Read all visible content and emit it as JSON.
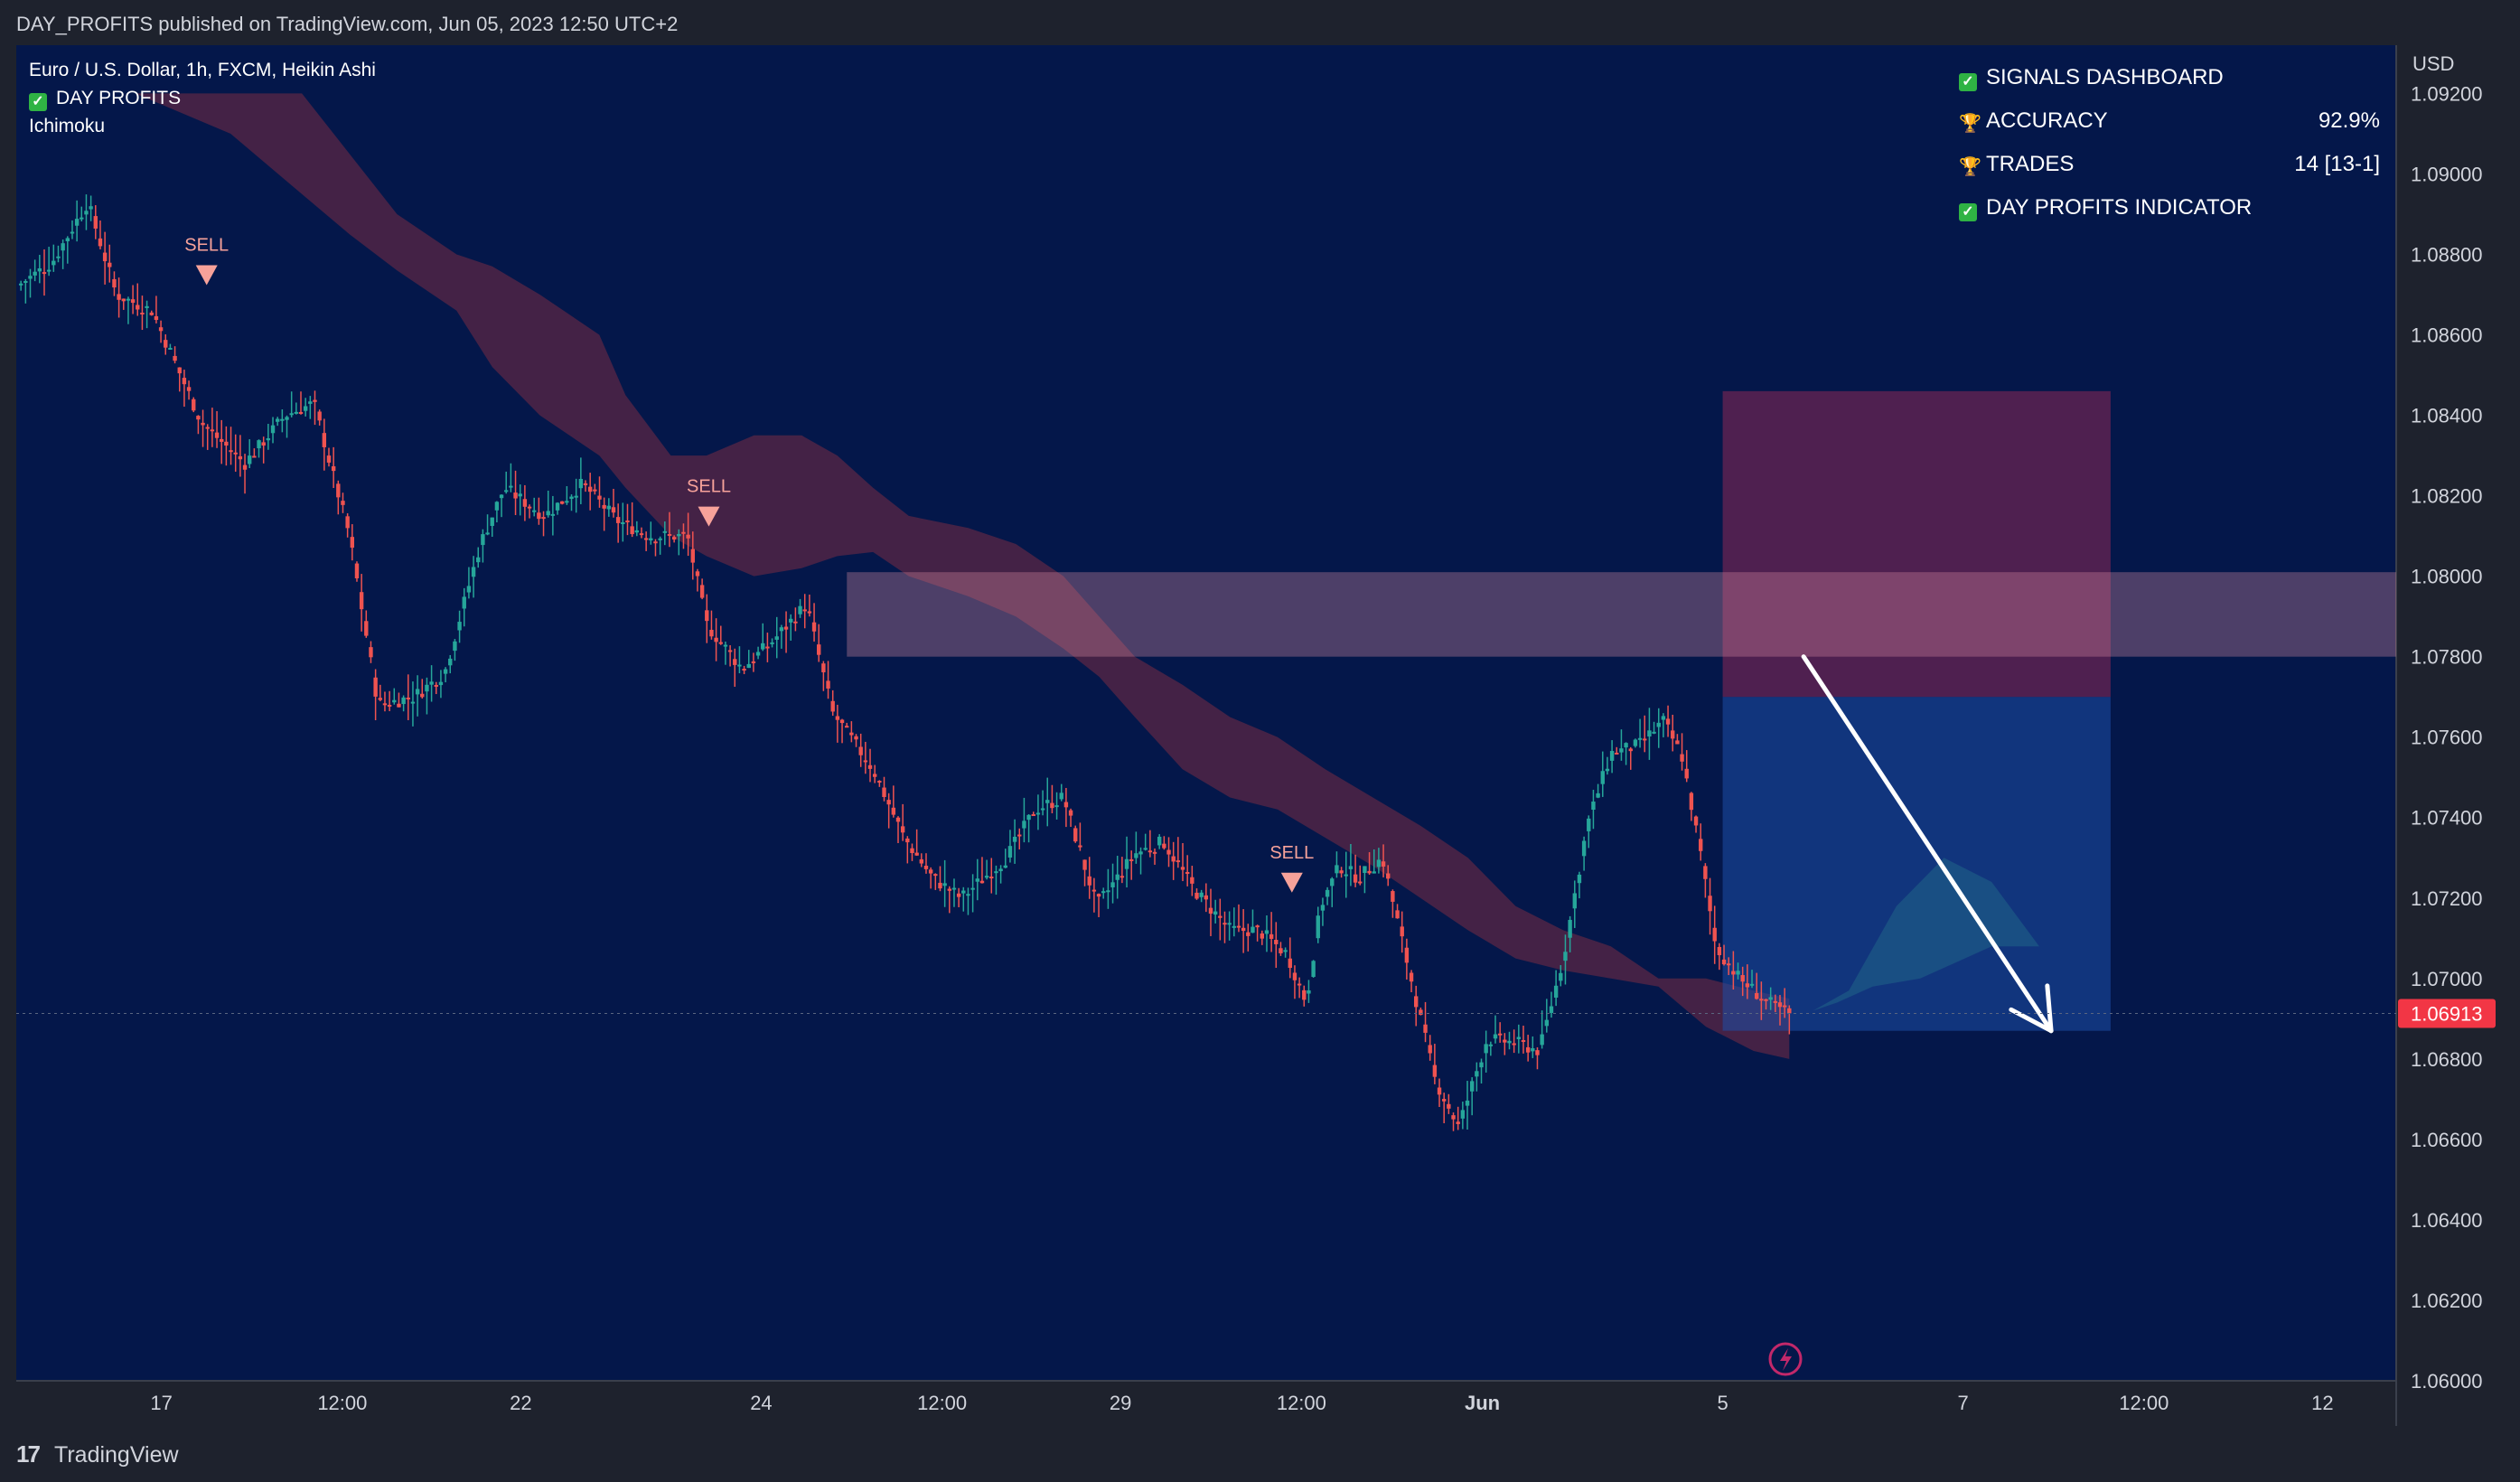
{
  "header": {
    "published": "DAY_PROFITS published on TradingView.com, Jun 05, 2023 12:50 UTC+2"
  },
  "legend": {
    "symbol": "Euro / U.S. Dollar, 1h, FXCM, Heikin Ashi",
    "indicator": "DAY PROFITS",
    "ichimoku": "Ichimoku"
  },
  "dashboard": {
    "title": "SIGNALS DASHBOARD",
    "accuracy_label": "ACCURACY",
    "accuracy_value": "92.9%",
    "trades_label": "TRADES",
    "trades_value": "14 [13-1]",
    "footer_label": "DAY PROFITS INDICATOR"
  },
  "footer": {
    "brand": "TradingView"
  },
  "colors": {
    "background": "#04174a",
    "bull": "#26a69a",
    "bear": "#ef5350",
    "cloud_bear": "#7a2c44",
    "cloud_bull": "#1e6b5e",
    "sell_marker": "#f7a29a",
    "last_price_bg": "#f23645"
  },
  "chart_data": {
    "type": "candlestick",
    "symbol": "EURUSD",
    "timeframe": "1h",
    "currency": "USD",
    "ylim": [
      1.06,
      1.0932
    ],
    "y_ticks": [
      "1.09200",
      "1.09000",
      "1.08800",
      "1.08600",
      "1.08400",
      "1.08200",
      "1.08000",
      "1.07800",
      "1.07600",
      "1.07400",
      "1.07200",
      "1.07000",
      "1.06800",
      "1.06600",
      "1.06400",
      "1.06200",
      "1.06000"
    ],
    "x_ticks": [
      {
        "label": "17",
        "t": 0.061
      },
      {
        "label": "12:00",
        "t": 0.137
      },
      {
        "label": "22",
        "t": 0.212
      },
      {
        "label": "24",
        "t": 0.313
      },
      {
        "label": "12:00",
        "t": 0.389
      },
      {
        "label": "29",
        "t": 0.464
      },
      {
        "label": "12:00",
        "t": 0.54
      },
      {
        "label": "Jun",
        "t": 0.616,
        "bold": true
      },
      {
        "label": "5",
        "t": 0.717
      },
      {
        "label": "7",
        "t": 0.818
      },
      {
        "label": "12:00",
        "t": 0.894
      },
      {
        "label": "12",
        "t": 0.969
      }
    ],
    "last_price": "1.06913",
    "last_price_value": 1.06913,
    "price_path": [
      [
        0.0,
        1.0872
      ],
      [
        0.015,
        1.0878
      ],
      [
        0.03,
        1.0893
      ],
      [
        0.042,
        1.087
      ],
      [
        0.057,
        1.0866
      ],
      [
        0.078,
        1.0838
      ],
      [
        0.096,
        1.0828
      ],
      [
        0.113,
        1.084
      ],
      [
        0.125,
        1.0843
      ],
      [
        0.14,
        1.081
      ],
      [
        0.152,
        1.0768
      ],
      [
        0.167,
        1.077
      ],
      [
        0.18,
        1.0776
      ],
      [
        0.195,
        1.0808
      ],
      [
        0.205,
        1.0822
      ],
      [
        0.222,
        1.0815
      ],
      [
        0.238,
        1.0823
      ],
      [
        0.252,
        1.0814
      ],
      [
        0.266,
        1.081
      ],
      [
        0.282,
        1.081
      ],
      [
        0.29,
        1.0788
      ],
      [
        0.305,
        1.0777
      ],
      [
        0.318,
        1.0784
      ],
      [
        0.332,
        1.0793
      ],
      [
        0.343,
        1.0766
      ],
      [
        0.36,
        1.0752
      ],
      [
        0.373,
        1.0735
      ],
      [
        0.385,
        1.0725
      ],
      [
        0.397,
        1.072
      ],
      [
        0.416,
        1.073
      ],
      [
        0.428,
        1.0742
      ],
      [
        0.44,
        1.0745
      ],
      [
        0.454,
        1.0718
      ],
      [
        0.47,
        1.0731
      ],
      [
        0.482,
        1.0734
      ],
      [
        0.495,
        1.0722
      ],
      [
        0.51,
        1.0712
      ],
      [
        0.522,
        1.0712
      ],
      [
        0.534,
        1.0706
      ],
      [
        0.542,
        1.0694
      ],
      [
        0.548,
        1.0718
      ],
      [
        0.556,
        1.0728
      ],
      [
        0.564,
        1.0725
      ],
      [
        0.574,
        1.073
      ],
      [
        0.582,
        1.071
      ],
      [
        0.59,
        1.069
      ],
      [
        0.596,
        1.0675
      ],
      [
        0.606,
        1.0663
      ],
      [
        0.618,
        1.0685
      ],
      [
        0.63,
        1.0684
      ],
      [
        0.64,
        1.0682
      ],
      [
        0.65,
        1.0705
      ],
      [
        0.66,
        1.0738
      ],
      [
        0.67,
        1.0756
      ],
      [
        0.682,
        1.0758
      ],
      [
        0.692,
        1.0764
      ],
      [
        0.7,
        1.0755
      ],
      [
        0.708,
        1.073
      ],
      [
        0.714,
        1.0708
      ],
      [
        0.724,
        1.07
      ],
      [
        0.736,
        1.0694
      ],
      [
        0.745,
        1.0691
      ]
    ],
    "ichimoku_cloud": {
      "upper": [
        [
          0.05,
          1.092
        ],
        [
          0.09,
          1.092
        ],
        [
          0.12,
          1.092
        ],
        [
          0.14,
          1.0905
        ],
        [
          0.16,
          1.089
        ],
        [
          0.185,
          1.088
        ],
        [
          0.2,
          1.0877
        ],
        [
          0.22,
          1.087
        ],
        [
          0.245,
          1.086
        ],
        [
          0.256,
          1.0845
        ],
        [
          0.275,
          1.083
        ],
        [
          0.29,
          1.083
        ],
        [
          0.31,
          1.0835
        ],
        [
          0.33,
          1.0835
        ],
        [
          0.345,
          1.083
        ],
        [
          0.36,
          1.0822
        ],
        [
          0.375,
          1.0815
        ],
        [
          0.4,
          1.0812
        ],
        [
          0.42,
          1.0808
        ],
        [
          0.44,
          1.08
        ],
        [
          0.455,
          1.079
        ],
        [
          0.47,
          1.078
        ],
        [
          0.49,
          1.0773
        ],
        [
          0.51,
          1.0765
        ],
        [
          0.53,
          1.076
        ],
        [
          0.55,
          1.0752
        ],
        [
          0.57,
          1.0745
        ],
        [
          0.59,
          1.0738
        ],
        [
          0.61,
          1.073
        ],
        [
          0.63,
          1.0718
        ],
        [
          0.65,
          1.0712
        ],
        [
          0.67,
          1.0708
        ],
        [
          0.69,
          1.07
        ],
        [
          0.71,
          1.07
        ],
        [
          0.73,
          1.0697
        ],
        [
          0.745,
          1.0695
        ]
      ],
      "lower": [
        [
          0.05,
          1.092
        ],
        [
          0.09,
          1.091
        ],
        [
          0.12,
          1.0895
        ],
        [
          0.14,
          1.0885
        ],
        [
          0.16,
          1.0876
        ],
        [
          0.185,
          1.0866
        ],
        [
          0.2,
          1.0852
        ],
        [
          0.22,
          1.084
        ],
        [
          0.245,
          1.083
        ],
        [
          0.256,
          1.0822
        ],
        [
          0.275,
          1.081
        ],
        [
          0.29,
          1.0805
        ],
        [
          0.31,
          1.08
        ],
        [
          0.33,
          1.0802
        ],
        [
          0.345,
          1.0805
        ],
        [
          0.36,
          1.0806
        ],
        [
          0.375,
          1.08
        ],
        [
          0.4,
          1.0795
        ],
        [
          0.42,
          1.079
        ],
        [
          0.44,
          1.0782
        ],
        [
          0.455,
          1.0775
        ],
        [
          0.47,
          1.0765
        ],
        [
          0.49,
          1.0752
        ],
        [
          0.51,
          1.0745
        ],
        [
          0.53,
          1.0742
        ],
        [
          0.55,
          1.0735
        ],
        [
          0.57,
          1.0728
        ],
        [
          0.59,
          1.072
        ],
        [
          0.61,
          1.0712
        ],
        [
          0.63,
          1.0705
        ],
        [
          0.65,
          1.0702
        ],
        [
          0.67,
          1.07
        ],
        [
          0.69,
          1.0698
        ],
        [
          0.71,
          1.0688
        ],
        [
          0.73,
          1.0682
        ],
        [
          0.745,
          1.068
        ]
      ],
      "bull_future": [
        [
          0.755,
          1.0692
        ],
        [
          0.77,
          1.0697
        ],
        [
          0.79,
          1.0718
        ],
        [
          0.81,
          1.073
        ],
        [
          0.83,
          1.0724
        ],
        [
          0.85,
          1.0708
        ],
        [
          0.85,
          1.0708
        ],
        [
          0.83,
          1.0708
        ],
        [
          0.8,
          1.07
        ],
        [
          0.78,
          1.0698
        ],
        [
          0.765,
          1.0694
        ]
      ]
    },
    "signals": [
      {
        "label": "SELL",
        "t": 0.08,
        "price": 1.0871
      },
      {
        "label": "SELL",
        "t": 0.291,
        "price": 1.0811
      },
      {
        "label": "SELL",
        "t": 0.536,
        "price": 1.072
      }
    ],
    "zones": {
      "resistance_band": {
        "t0": 0.349,
        "t1": 1.0,
        "top": 1.0801,
        "bottom": 1.078
      },
      "stop_zone": {
        "t0": 0.717,
        "t1": 0.88,
        "top": 1.0846,
        "bottom": 1.077
      },
      "target_zone": {
        "t0": 0.717,
        "t1": 0.88,
        "top": 1.077,
        "bottom": 1.0687
      }
    },
    "arrow": {
      "from": [
        0.751,
        1.078
      ],
      "to": [
        0.855,
        1.0687
      ]
    }
  }
}
